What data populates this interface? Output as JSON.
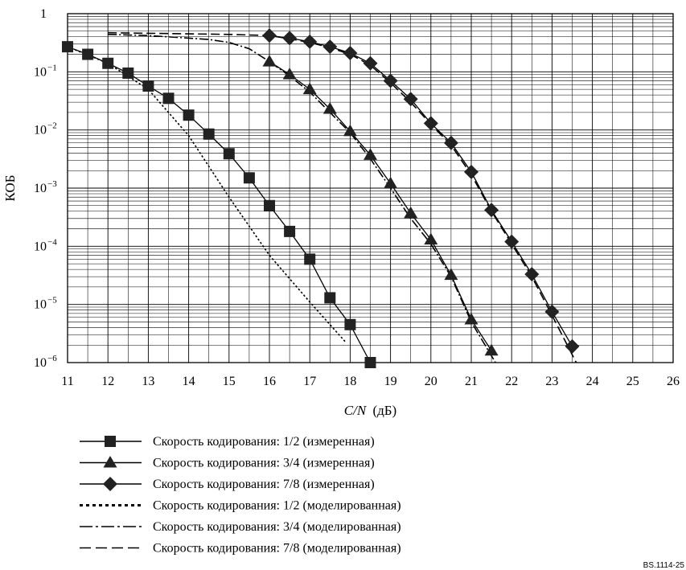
{
  "chart_data": {
    "type": "line",
    "xlabel_italic": "C/N",
    "xlabel_unit": "(дБ)",
    "ylabel": "КОБ",
    "xlim": [
      11,
      26
    ],
    "ylim": [
      1e-06,
      1
    ],
    "y_scale": "log",
    "grid": true,
    "x_ticks": [
      11,
      12,
      13,
      14,
      15,
      16,
      17,
      18,
      19,
      20,
      21,
      22,
      23,
      24,
      25,
      26
    ],
    "y_ticks": [
      {
        "value": 1,
        "base": "1",
        "exp": ""
      },
      {
        "value": 0.1,
        "base": "10",
        "exp": "−1"
      },
      {
        "value": 0.01,
        "base": "10",
        "exp": "−2"
      },
      {
        "value": 0.001,
        "base": "10",
        "exp": "−3"
      },
      {
        "value": 0.0001,
        "base": "10",
        "exp": "−4"
      },
      {
        "value": 1e-05,
        "base": "10",
        "exp": "−5"
      },
      {
        "value": 1e-06,
        "base": "10",
        "exp": "−6"
      }
    ],
    "legend_position": "bottom-left",
    "figure_id": "BS.1114-25",
    "series": [
      {
        "name": "Скорость кодирования:  1/2 (измеренная)",
        "marker": "square",
        "dash": "solid",
        "points": [
          [
            11.0,
            0.27
          ],
          [
            11.5,
            0.2
          ],
          [
            12.0,
            0.14
          ],
          [
            12.5,
            0.095
          ],
          [
            13.0,
            0.057
          ],
          [
            13.5,
            0.035
          ],
          [
            14.0,
            0.018
          ],
          [
            14.5,
            0.0085
          ],
          [
            15.0,
            0.0039
          ],
          [
            15.5,
            0.0015
          ],
          [
            16.0,
            0.0005
          ],
          [
            16.5,
            0.00018
          ],
          [
            17.0,
            6e-05
          ],
          [
            17.5,
            1.3e-05
          ],
          [
            18.0,
            4.5e-06
          ],
          [
            18.5,
            1e-06
          ]
        ]
      },
      {
        "name": "Скорость кодирования:  3/4 (измеренная)",
        "marker": "triangle",
        "dash": "solid",
        "points": [
          [
            16.0,
            0.15
          ],
          [
            16.5,
            0.09
          ],
          [
            17.0,
            0.05
          ],
          [
            17.5,
            0.023
          ],
          [
            18.0,
            0.0095
          ],
          [
            18.5,
            0.0037
          ],
          [
            19.0,
            0.0012
          ],
          [
            19.5,
            0.00037
          ],
          [
            20.0,
            0.00013
          ],
          [
            20.5,
            3.2e-05
          ],
          [
            21.0,
            5.5e-06
          ],
          [
            21.5,
            1.6e-06
          ]
        ]
      },
      {
        "name": "Скорость кодирования:  7/8 (измеренная)",
        "marker": "diamond",
        "dash": "solid",
        "points": [
          [
            16.0,
            0.42
          ],
          [
            16.5,
            0.38
          ],
          [
            17.0,
            0.33
          ],
          [
            17.5,
            0.27
          ],
          [
            18.0,
            0.21
          ],
          [
            18.5,
            0.14
          ],
          [
            19.0,
            0.07
          ],
          [
            19.5,
            0.034
          ],
          [
            20.0,
            0.013
          ],
          [
            20.5,
            0.006
          ],
          [
            21.0,
            0.0019
          ],
          [
            21.5,
            0.00042
          ],
          [
            22.0,
            0.00012
          ],
          [
            22.5,
            3.3e-05
          ],
          [
            23.0,
            7.5e-06
          ],
          [
            23.5,
            1.9e-06
          ]
        ]
      },
      {
        "name": "Скорость кодирования:  1/2 (моделированная)",
        "marker": "none",
        "dash": "dotted",
        "points": [
          [
            11.0,
            0.27
          ],
          [
            12.0,
            0.14
          ],
          [
            13.0,
            0.05
          ],
          [
            14.0,
            0.008
          ],
          [
            15.0,
            0.0007
          ],
          [
            16.0,
            7e-05
          ],
          [
            17.0,
            1.1e-05
          ],
          [
            17.9,
            2.2e-06
          ]
        ]
      },
      {
        "name": "Скорость кодирования:  3/4 (моделированная)",
        "marker": "none",
        "dash": "dashdot",
        "points": [
          [
            12.0,
            0.44
          ],
          [
            13.0,
            0.42
          ],
          [
            14.0,
            0.38
          ],
          [
            14.5,
            0.36
          ],
          [
            15.0,
            0.32
          ],
          [
            15.5,
            0.25
          ],
          [
            16.0,
            0.15
          ],
          [
            16.5,
            0.085
          ],
          [
            17.0,
            0.045
          ],
          [
            17.5,
            0.02
          ],
          [
            18.0,
            0.009
          ],
          [
            18.5,
            0.0032
          ],
          [
            19.0,
            0.001
          ],
          [
            19.5,
            0.0003
          ],
          [
            20.0,
            0.00011
          ],
          [
            20.5,
            3e-05
          ],
          [
            21.0,
            5e-06
          ],
          [
            21.6,
            1e-06
          ]
        ]
      },
      {
        "name": "Скорость кодирования:  7/8 (моделированная)",
        "marker": "none",
        "dash": "dashed",
        "points": [
          [
            12.0,
            0.47
          ],
          [
            13.0,
            0.46
          ],
          [
            14.0,
            0.45
          ],
          [
            15.0,
            0.44
          ],
          [
            16.0,
            0.42
          ],
          [
            16.5,
            0.37
          ],
          [
            17.0,
            0.32
          ],
          [
            17.5,
            0.26
          ],
          [
            18.0,
            0.2
          ],
          [
            18.5,
            0.13
          ],
          [
            19.0,
            0.065
          ],
          [
            19.5,
            0.03
          ],
          [
            20.0,
            0.0125
          ],
          [
            20.5,
            0.0055
          ],
          [
            21.0,
            0.0017
          ],
          [
            21.5,
            0.0004
          ],
          [
            22.0,
            0.00011
          ],
          [
            22.5,
            3e-05
          ],
          [
            22.8,
            1.2e-05
          ],
          [
            23.0,
            6.5e-06
          ],
          [
            23.6,
            1e-06
          ]
        ]
      }
    ]
  }
}
